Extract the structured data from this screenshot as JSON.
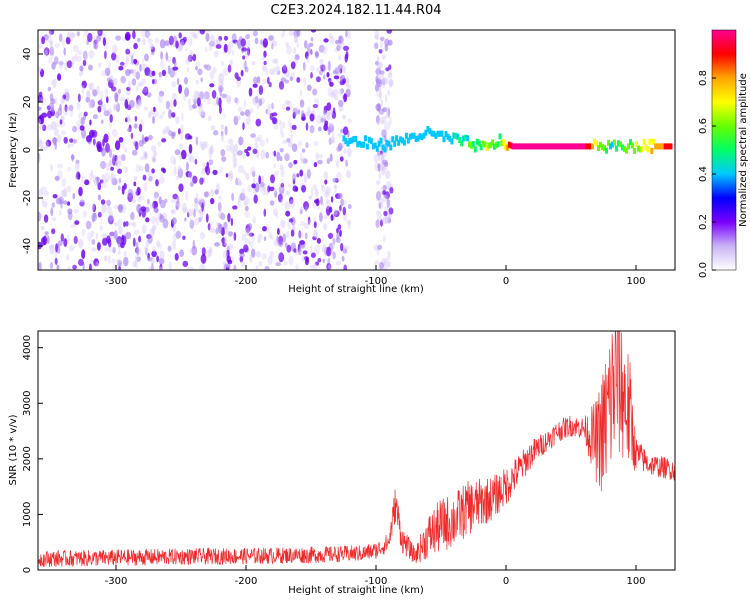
{
  "title": "C2E3.2024.182.11.44.R04",
  "chart_data": [
    {
      "type": "heatmap",
      "xlabel": "Height of straight line (km)",
      "ylabel": "Frequency (Hz)",
      "xlim": [
        -360,
        130
      ],
      "ylim": [
        -50,
        50
      ],
      "x_ticks": [
        -300,
        -200,
        -100,
        0,
        100
      ],
      "y_ticks": [
        -40,
        -20,
        0,
        20,
        40
      ],
      "colorbar": {
        "label": "Normalized spectral amplitude",
        "range": [
          0,
          1
        ],
        "ticks": [
          "0.0",
          "0.2",
          "0.4",
          "0.6",
          "0.8"
        ],
        "tick_values": [
          0,
          0.2,
          0.4,
          0.6,
          0.8
        ],
        "colormap": [
          "#ffffff",
          "#c9b3f5",
          "#7a00ff",
          "#0000ff",
          "#00c8ff",
          "#00ff66",
          "#66ff00",
          "#ffff00",
          "#ffa500",
          "#ff0000",
          "#ff0090"
        ]
      },
      "noise_region": {
        "x_range": [
          -360,
          -120
        ],
        "freq_range": [
          -50,
          50
        ]
      },
      "secondary_noise": {
        "x_range": [
          -100,
          -88
        ],
        "freq_range": [
          -50,
          50
        ]
      },
      "ridge": [
        {
          "x": -125,
          "freq": 4,
          "amp": 0.35
        },
        {
          "x": -110,
          "freq": 3,
          "amp": 0.4
        },
        {
          "x": -95,
          "freq": 2,
          "amp": 0.35
        },
        {
          "x": -80,
          "freq": 4,
          "amp": 0.4
        },
        {
          "x": -62,
          "freq": 7,
          "amp": 0.4
        },
        {
          "x": -45,
          "freq": 5,
          "amp": 0.45
        },
        {
          "x": -30,
          "freq": 3,
          "amp": 0.55
        },
        {
          "x": -15,
          "freq": 0.5,
          "amp": 0.7
        },
        {
          "x": -5,
          "freq": 4,
          "amp": 0.6
        },
        {
          "x": 5,
          "freq": 1.5,
          "amp": 0.95
        },
        {
          "x": 30,
          "freq": 1.5,
          "amp": 0.95
        },
        {
          "x": 60,
          "freq": 1.5,
          "amp": 0.95
        },
        {
          "x": 80,
          "freq": 1.5,
          "amp": 0.55
        },
        {
          "x": 100,
          "freq": 1.5,
          "amp": 0.7
        },
        {
          "x": 128,
          "freq": 1.5,
          "amp": 0.9
        }
      ]
    },
    {
      "type": "line",
      "xlabel": "Height of straight line (km)",
      "ylabel": "SNR (10 * v/v)",
      "xlim": [
        -360,
        130
      ],
      "ylim": [
        0,
        4300
      ],
      "x_ticks": [
        -300,
        -200,
        -100,
        0,
        100
      ],
      "y_ticks": [
        0,
        1000,
        2000,
        3000,
        4000
      ],
      "series": [
        {
          "color": "#ee2b2b",
          "x": [
            -360,
            -300,
            -250,
            -200,
            -150,
            -110,
            -100,
            -90,
            -85,
            -80,
            -70,
            -60,
            -50,
            -40,
            -30,
            -20,
            -10,
            0,
            10,
            20,
            30,
            40,
            50,
            60,
            70,
            75,
            80,
            85,
            90,
            95,
            100,
            110,
            120,
            130
          ],
          "values": [
            200,
            220,
            240,
            250,
            270,
            300,
            350,
            500,
            1200,
            550,
            250,
            600,
            800,
            900,
            1100,
            1200,
            1300,
            1500,
            1800,
            2100,
            2300,
            2500,
            2600,
            2550,
            2300,
            2500,
            3000,
            3500,
            3200,
            2800,
            2100,
            1900,
            1850,
            1800
          ],
          "noise": [
            150,
            150,
            150,
            150,
            150,
            150,
            150,
            180,
            350,
            250,
            150,
            400,
            500,
            500,
            500,
            450,
            400,
            350,
            300,
            250,
            200,
            200,
            200,
            200,
            800,
            1200,
            1500,
            1500,
            1300,
            1100,
            300,
            200,
            200,
            200
          ]
        }
      ]
    }
  ]
}
